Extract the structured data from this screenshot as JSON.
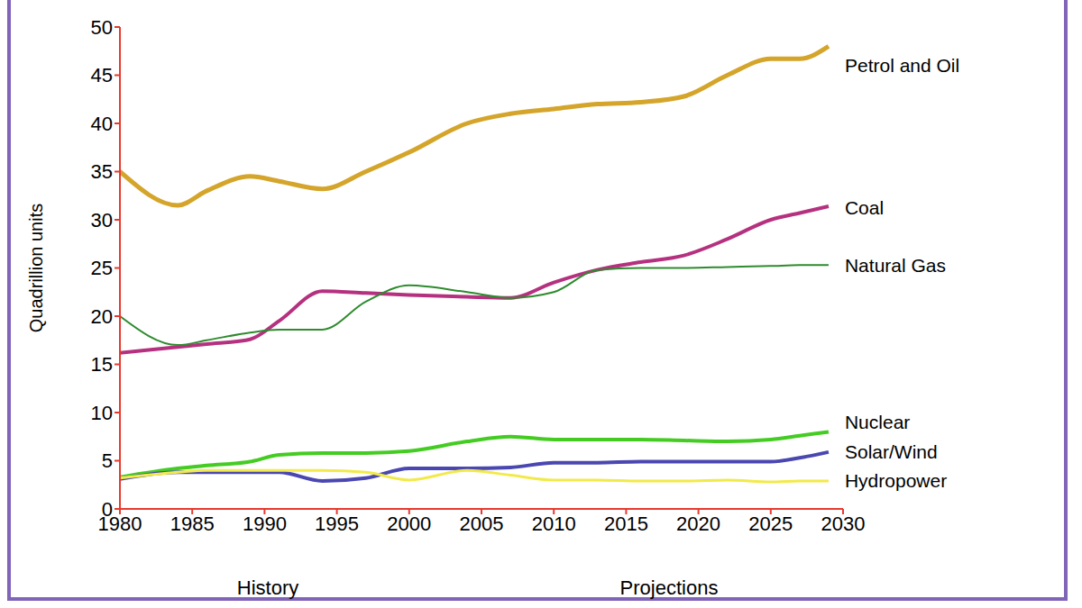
{
  "chart_data": {
    "type": "line",
    "y_label": "Quadrillion units",
    "annotations": [
      "History",
      "Projections"
    ],
    "x": [
      1980,
      1984,
      1986,
      1989,
      1991,
      1994,
      1997,
      2000,
      2004,
      2007,
      2010,
      2013,
      2016,
      2019,
      2022,
      2025,
      2027,
      2029
    ],
    "series": [
      {
        "name": "Petrol and Oil",
        "color": "#d4a52a",
        "values": [
          35,
          31.5,
          33,
          34.5,
          34,
          33.2,
          35,
          37,
          40,
          41,
          41.5,
          42,
          42.2,
          42.8,
          45,
          46.7,
          46.7,
          48
        ]
      },
      {
        "name": "Coal",
        "color": "#b5317f",
        "values": [
          16.2,
          16.8,
          17.1,
          17.6,
          19.5,
          22.6,
          22.4,
          22.2,
          22,
          21.9,
          23.5,
          24.8,
          25.6,
          26.3,
          28,
          30,
          30.7,
          31.4
        ]
      },
      {
        "name": "Natural Gas",
        "color": "#2e8b2e",
        "values": [
          20,
          17,
          17.5,
          18.3,
          18.6,
          18.6,
          21.5,
          23.2,
          22.5,
          21.9,
          22.5,
          24.8,
          25,
          25,
          25.1,
          25.2,
          25.3,
          25.3
        ]
      },
      {
        "name": "Nuclear",
        "color": "#44cc22",
        "values": [
          3.3,
          4.2,
          4.5,
          4.9,
          5.6,
          5.8,
          5.8,
          6,
          7,
          7.5,
          7.2,
          7.2,
          7.2,
          7.1,
          7,
          7.2,
          7.6,
          8
        ]
      },
      {
        "name": "Solar/Wind",
        "color": "#4a48b0",
        "values": [
          3.1,
          3.8,
          3.8,
          3.8,
          3.8,
          2.9,
          3.2,
          4.2,
          4.2,
          4.3,
          4.8,
          4.8,
          4.9,
          4.9,
          4.9,
          4.9,
          5.3,
          5.9
        ]
      },
      {
        "name": "Hydropower",
        "color": "#f2ea4a",
        "values": [
          3.2,
          3.8,
          4,
          4,
          4,
          4,
          3.8,
          3,
          4,
          3.5,
          3,
          3,
          2.9,
          2.9,
          3,
          2.8,
          2.9,
          2.9
        ]
      }
    ],
    "xlim": [
      1980,
      2030
    ],
    "ylim": [
      0,
      50
    ],
    "xticks": [
      1980,
      1985,
      1990,
      1995,
      2000,
      2005,
      2010,
      2015,
      2020,
      2025,
      2030
    ],
    "yticks": [
      0,
      5,
      10,
      15,
      20,
      25,
      30,
      35,
      40,
      45,
      50
    ],
    "grid": false
  }
}
